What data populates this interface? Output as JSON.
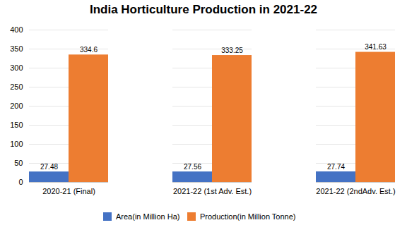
{
  "chart_data": {
    "type": "bar",
    "title": "India Horticulture Production in 2021-22",
    "categories": [
      "2020-21 (Final)",
      "2021-22 (1st Adv. Est.)",
      "2021-22 (2ndAdv. Est.)"
    ],
    "series": [
      {
        "name": "Area(in Million Ha)",
        "color": "#4472C4",
        "values": [
          27.48,
          27.56,
          27.74
        ]
      },
      {
        "name": "Production(in Million Tonne)",
        "color": "#ED7D31",
        "values": [
          334.6,
          333.25,
          341.63
        ]
      }
    ],
    "ylim": [
      0,
      400
    ],
    "yticks": [
      0,
      50,
      100,
      150,
      200,
      250,
      300,
      350,
      400
    ],
    "grid": true,
    "data_labels": true,
    "legend": "bottom"
  }
}
